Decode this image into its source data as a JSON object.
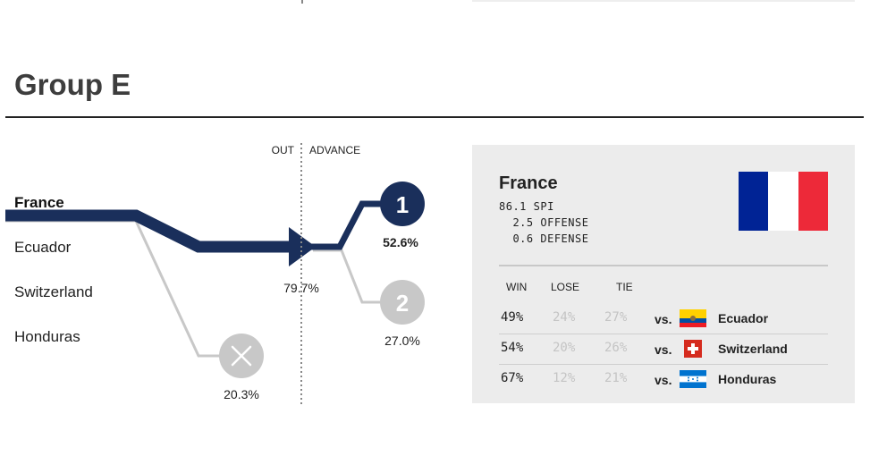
{
  "group": {
    "title": "Group E"
  },
  "flow": {
    "out_label": "OUT",
    "advance_label": "ADVANCE",
    "teams": [
      "France",
      "Ecuador",
      "Switzerland",
      "Honduras"
    ],
    "highlighted_team": "France",
    "advance_pct": "79.7%",
    "first_pct": "52.6%",
    "second_pct": "27.0%",
    "out_pct": "20.3%",
    "first_label": "1",
    "second_label": "2",
    "colors": {
      "primary": "#1a2f5b",
      "grey": "#c8c8c8"
    }
  },
  "panel": {
    "team": "France",
    "stats": [
      {
        "value": "86.1",
        "label": "SPI"
      },
      {
        "value": "2.5",
        "label": "OFFENSE"
      },
      {
        "value": "0.6",
        "label": "DEFENSE"
      }
    ],
    "headers": {
      "win": "WIN",
      "lose": "LOSE",
      "tie": "TIE"
    },
    "vs_label": "vs.",
    "matches": [
      {
        "win": "49%",
        "lose": "24%",
        "tie": "27%",
        "opponent": "Ecuador"
      },
      {
        "win": "54%",
        "lose": "20%",
        "tie": "26%",
        "opponent": "Switzerland"
      },
      {
        "win": "67%",
        "lose": "12%",
        "tie": "21%",
        "opponent": "Honduras"
      }
    ],
    "flag_colors": [
      "#002395",
      "#ffffff",
      "#ed2939"
    ]
  }
}
